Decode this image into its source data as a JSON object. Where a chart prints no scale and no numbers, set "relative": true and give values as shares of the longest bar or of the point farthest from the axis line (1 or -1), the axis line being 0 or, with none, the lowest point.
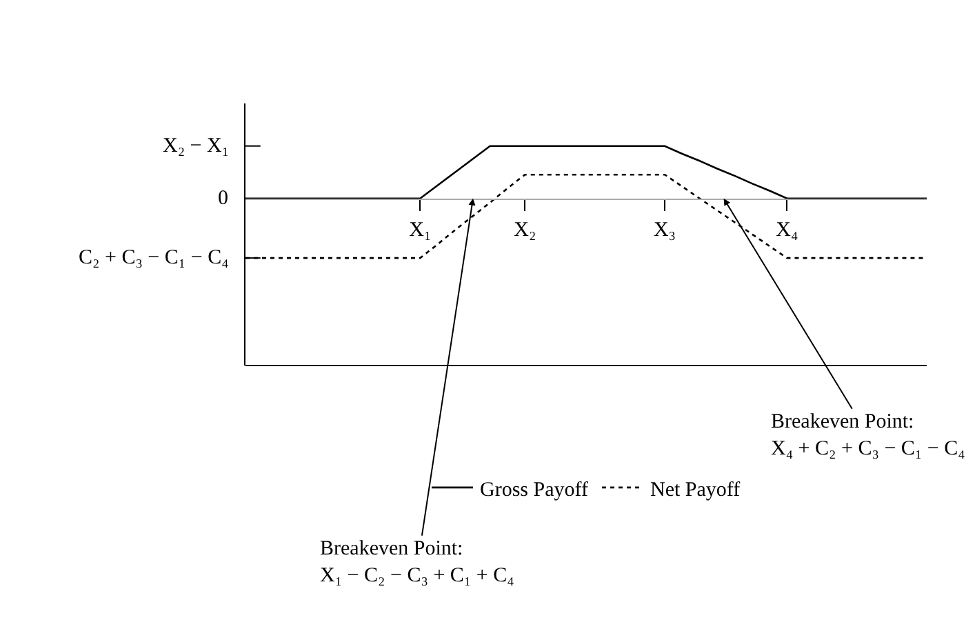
{
  "chart_data": {
    "type": "line",
    "relative": true,
    "categories": [
      null,
      null,
      null,
      null,
      null,
      null,
      null,
      null,
      null,
      null,
      "X₁",
      null,
      null,
      null,
      null,
      null,
      "X₂",
      null,
      null,
      null,
      null,
      null,
      null,
      null,
      "X₃",
      null,
      null,
      null,
      null,
      null,
      null,
      "X₄",
      null,
      null,
      null,
      null,
      null,
      null,
      null,
      null
    ],
    "series": [
      {
        "name": "Gross Payoff",
        "color": "#000000",
        "line_style": "solid",
        "values": [
          0,
          0,
          0,
          0,
          0,
          0,
          0,
          0,
          0,
          0,
          0,
          0.22,
          0.44,
          0.66,
          0.88,
          0.88,
          0.88,
          0.88,
          0.88,
          0.88,
          0.88,
          0.88,
          0.88,
          0.88,
          0.88,
          0.75,
          0.63,
          0.5,
          0.38,
          0.25,
          0.13,
          0,
          0,
          0,
          0,
          0,
          0,
          0,
          0,
          0
        ]
      },
      {
        "name": "Net Payoff",
        "color": "#000000",
        "line_style": "dotted",
        "values": [
          -1,
          -1,
          -1,
          -1,
          -1,
          -1,
          -1,
          -1,
          -1,
          -1,
          -1,
          -0.77,
          -0.53,
          -0.3,
          -0.07,
          0.17,
          0.4,
          0.4,
          0.4,
          0.4,
          0.4,
          0.4,
          0.4,
          0.4,
          0.4,
          0.2,
          0,
          -0.2,
          -0.4,
          -0.6,
          -0.8,
          -1,
          -1,
          -1,
          -1,
          -1,
          -1,
          -1,
          -1,
          -1
        ]
      }
    ],
    "annotations": [
      "X₂ − X₁",
      "0",
      "C₂ + C₃ − C₁ − C₄",
      "Breakeven Point:\nX₁ − C₂ − C₃ + C₁ + C₄",
      "Breakeven Point:\nX₄ + C₂ + C₃ − C₁ − C₄"
    ],
    "legend": "bottom",
    "marker": "none"
  }
}
